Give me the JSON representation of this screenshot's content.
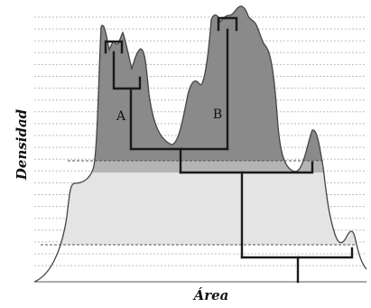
{
  "axes": {
    "x_label": "Área",
    "y_label": "Densidad"
  },
  "regions": {
    "a_label": "A",
    "b_label": "B"
  },
  "style": {
    "curve_color": "#444444",
    "grid_color": "#bdbdbd",
    "dark_fill": "#8a8a8a",
    "mid_fill": "#b4b4b4",
    "light_fill": "#e4e4e4",
    "tree_color": "#1a1a1a"
  }
}
